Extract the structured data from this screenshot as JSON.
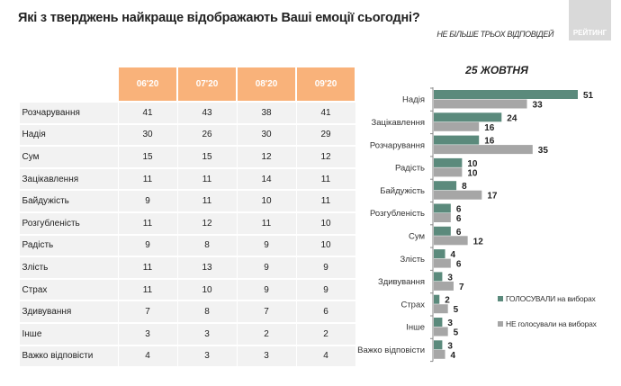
{
  "title": "Які з тверджень найкраще відображають Ваші емоції сьогодні?",
  "subtitle": "НЕ БІЛЬШЕ ТРЬОХ ВІДПОВІДЕЙ",
  "logo_text": "РЕЙТИНГ",
  "table": {
    "columns": [
      "06'20",
      "07'20",
      "08'20",
      "09'20"
    ],
    "rows": [
      {
        "label": "Розчарування",
        "values": [
          "41",
          "43",
          "38",
          "41"
        ]
      },
      {
        "label": "Надія",
        "values": [
          "30",
          "26",
          "30",
          "29"
        ]
      },
      {
        "label": "Сум",
        "values": [
          "15",
          "15",
          "12",
          "12"
        ]
      },
      {
        "label": "Зацікавлення",
        "values": [
          "11",
          "11",
          "14",
          "11"
        ]
      },
      {
        "label": "Байдужість",
        "values": [
          "9",
          "11",
          "10",
          "11"
        ]
      },
      {
        "label": "Розгубленість",
        "values": [
          "11",
          "12",
          "11",
          "10"
        ]
      },
      {
        "label": "Радість",
        "values": [
          "9",
          "8",
          "9",
          "10"
        ]
      },
      {
        "label": "Злість",
        "values": [
          "11",
          "13",
          "9",
          "9"
        ]
      },
      {
        "label": "Страх",
        "values": [
          "11",
          "10",
          "9",
          "9"
        ]
      },
      {
        "label": "Здивування",
        "values": [
          "7",
          "8",
          "7",
          "6"
        ]
      },
      {
        "label": "Інше",
        "values": [
          "3",
          "3",
          "2",
          "2"
        ]
      },
      {
        "label": "Важко відповісти",
        "values": [
          "4",
          "3",
          "3",
          "4"
        ]
      }
    ]
  },
  "chart_data": {
    "type": "bar",
    "orientation": "horizontal",
    "title": "25 ЖОВТНЯ",
    "categories": [
      "Надія",
      "Зацікавлення",
      "Розчарування",
      "Радість",
      "Байдужість",
      "Розгубленість",
      "Сум",
      "Злість",
      "Здивування",
      "Страх",
      "Інше",
      "Важко відповісти"
    ],
    "series": [
      {
        "name": "ГОЛОСУВАЛИ на виборах",
        "color": "#5b8a7c",
        "values": [
          51,
          24,
          16,
          10,
          8,
          6,
          6,
          4,
          3,
          2,
          3,
          3
        ]
      },
      {
        "name": "НЕ голосували на виборах",
        "color": "#a6a6a6",
        "values": [
          33,
          16,
          35,
          10,
          17,
          6,
          12,
          6,
          7,
          5,
          5,
          4
        ]
      }
    ],
    "xlim": [
      0,
      51
    ],
    "legend": "right",
    "data_labels": true
  },
  "colors": {
    "header": "#f9b27a",
    "cell": "#f2f2f2"
  }
}
